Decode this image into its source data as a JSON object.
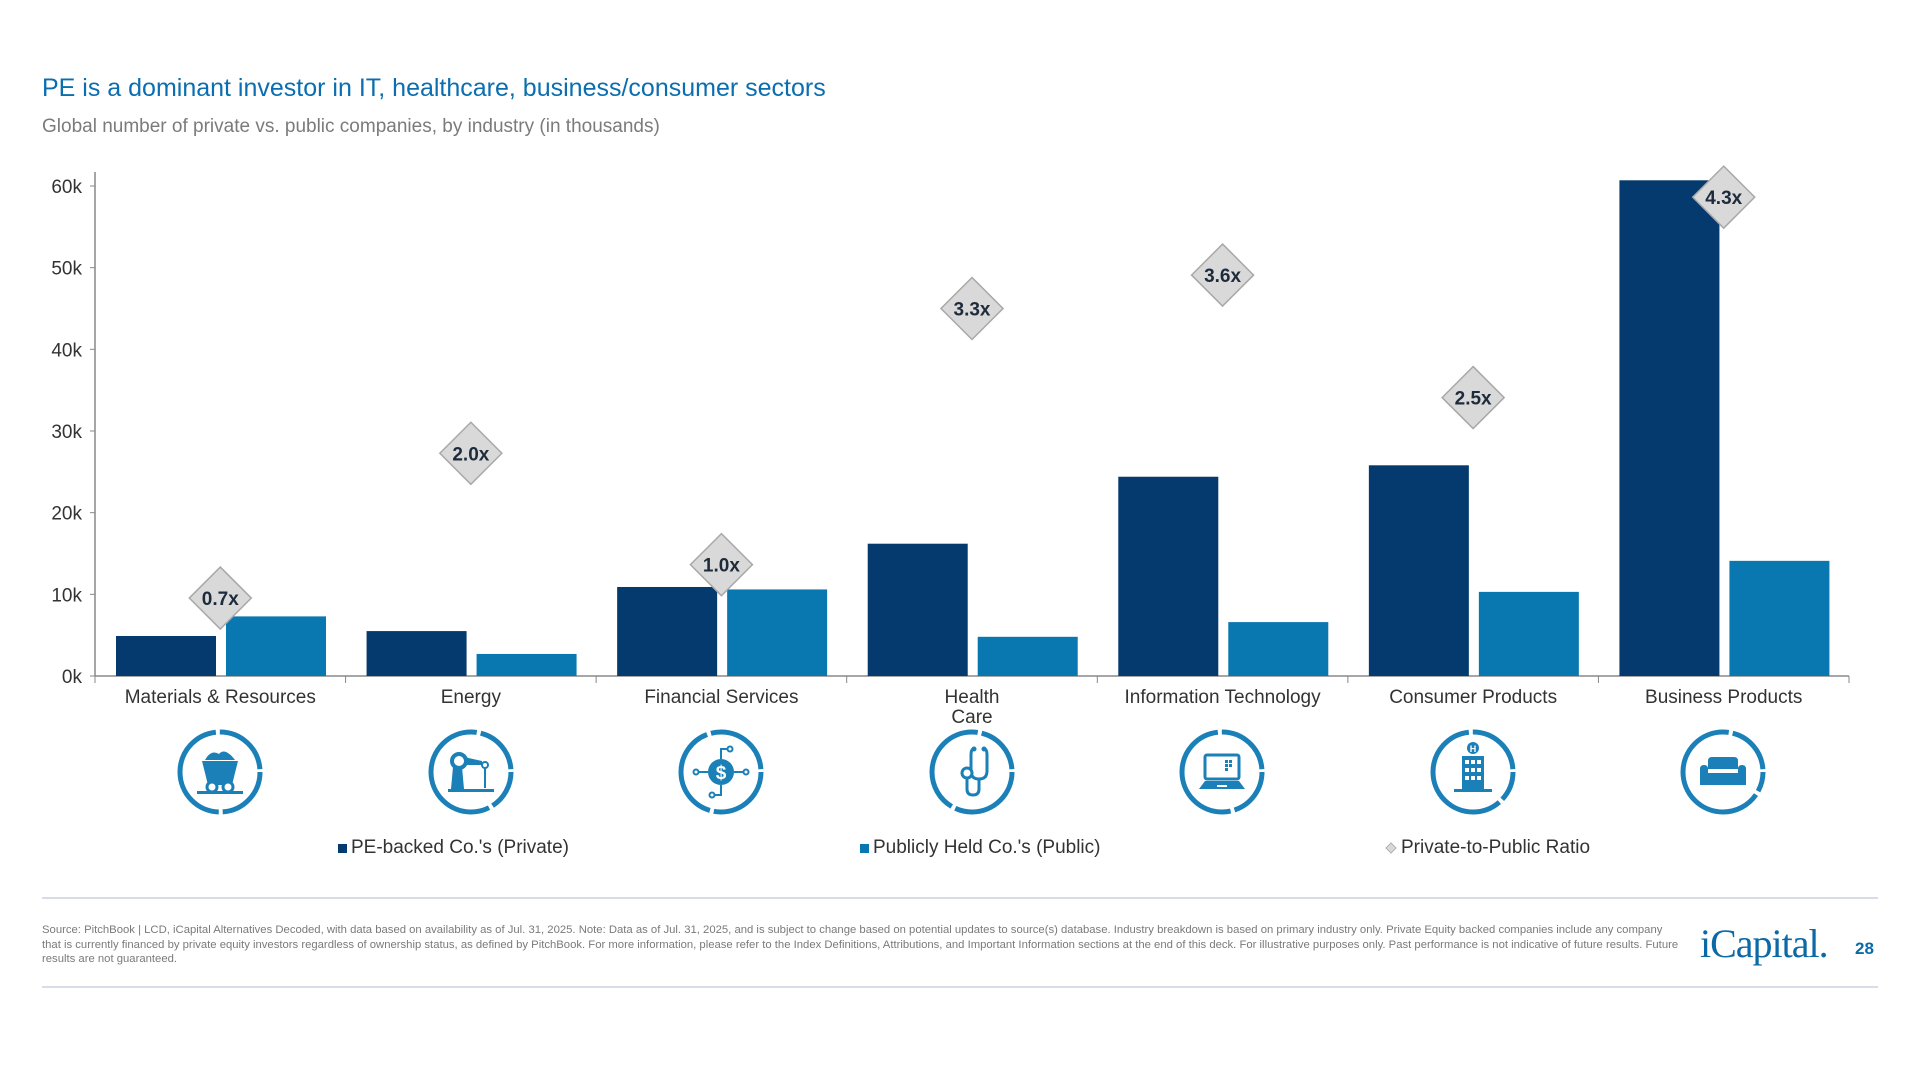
{
  "title": "PE is a dominant investor in IT, healthcare, business/consumer sectors",
  "subtitle": "Global number of private vs. public companies, by industry (in thousands)",
  "colors": {
    "private": "#053a6e",
    "public": "#0a78b0",
    "ratio_fill": "#d9d9d9",
    "ratio_stroke": "#a8a8a8",
    "icon": "#1b80b8",
    "title": "#0a6eb0"
  },
  "chart_data": {
    "type": "bar",
    "categories": [
      "Materials & Resources",
      "Energy",
      "Financial Services",
      "Health\nCare",
      "Information Technology",
      "Consumer Products",
      "Business Products"
    ],
    "series": [
      {
        "name": "PE-backed Co.'s (Private)",
        "values": [
          4.9,
          5.5,
          10.9,
          16.2,
          24.4,
          25.8,
          60.7
        ]
      },
      {
        "name": "Publicly Held Co.'s (Public)",
        "values": [
          7.3,
          2.7,
          10.6,
          4.8,
          6.6,
          10.3,
          14.1
        ]
      },
      {
        "name": "Private-to-Public Ratio",
        "type": "marker",
        "values": [
          0.7,
          2.0,
          1.0,
          3.3,
          3.6,
          2.5,
          4.3
        ],
        "labels": [
          "0.7x",
          "2.0x",
          "1.0x",
          "3.3x",
          "3.6x",
          "2.5x",
          "4.3x"
        ]
      }
    ],
    "ylim": [
      0,
      60
    ],
    "ratio_axis_range": [
      0,
      4.4
    ],
    "yticks": [
      0,
      10,
      20,
      30,
      40,
      50,
      60
    ],
    "ytick_labels": [
      "0k",
      "10k",
      "20k",
      "30k",
      "40k",
      "50k",
      "60k"
    ],
    "grid": false,
    "legend_position": "bottom"
  },
  "icons": [
    "mine-cart-icon",
    "robot-arm-icon",
    "dollar-network-icon",
    "stethoscope-icon",
    "laptop-icon",
    "hospital-building-icon",
    "sofa-icon"
  ],
  "legend": [
    {
      "label": "PE-backed Co.'s (Private)",
      "marker": "square"
    },
    {
      "label": "Publicly Held Co.'s (Public)",
      "marker": "square"
    },
    {
      "label": "Private-to-Public Ratio",
      "marker": "diamond"
    }
  ],
  "footer": {
    "source": "Source: PitchBook | LCD, iCapital Alternatives Decoded, with data based on availability as of Jul. 31, 2025. Note: Data as of Jul. 31, 2025, and is subject to change based on potential updates to source(s) database. Industry breakdown is based on primary industry only. Private Equity backed companies include any company that is currently financed by private equity investors regardless of ownership status, as defined by PitchBook. For more information, please refer to the Index Definitions, Attributions, and Important Information sections at the end of this deck. For illustrative purposes only. Past performance is not indicative of future results. Future results are not guaranteed.",
    "logo": "iCapital.",
    "page_number": "28"
  }
}
